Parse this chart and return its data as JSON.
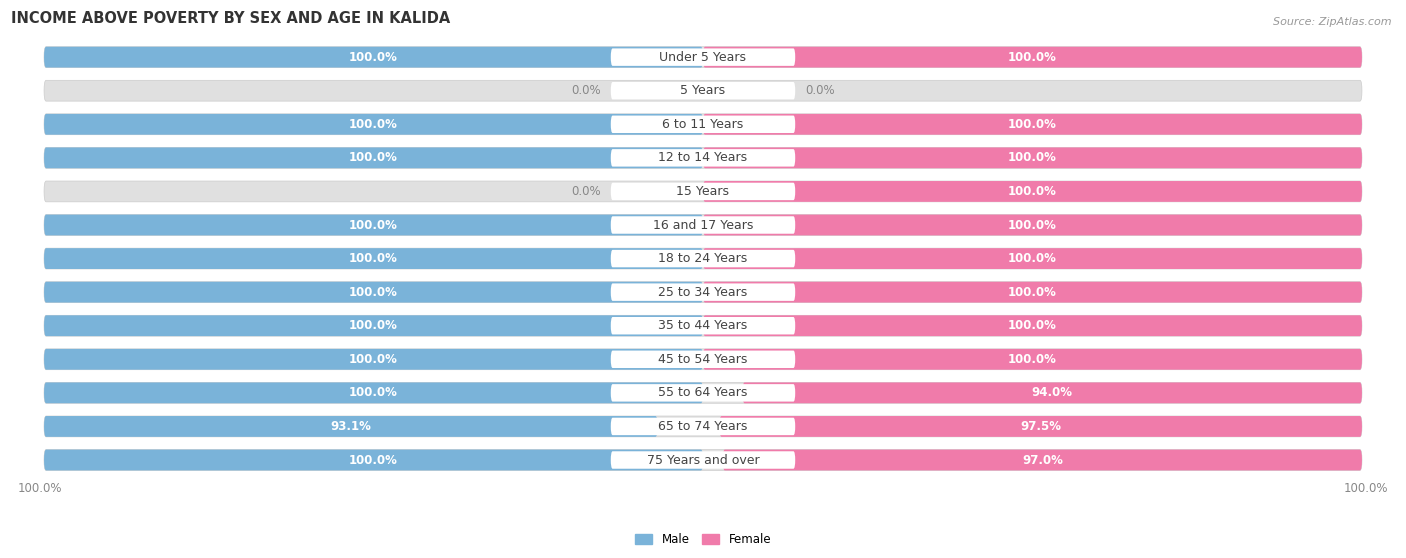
{
  "title": "INCOME ABOVE POVERTY BY SEX AND AGE IN KALIDA",
  "source": "Source: ZipAtlas.com",
  "categories": [
    "Under 5 Years",
    "5 Years",
    "6 to 11 Years",
    "12 to 14 Years",
    "15 Years",
    "16 and 17 Years",
    "18 to 24 Years",
    "25 to 34 Years",
    "35 to 44 Years",
    "45 to 54 Years",
    "55 to 64 Years",
    "65 to 74 Years",
    "75 Years and over"
  ],
  "male_values": [
    100.0,
    0.0,
    100.0,
    100.0,
    0.0,
    100.0,
    100.0,
    100.0,
    100.0,
    100.0,
    100.0,
    93.1,
    100.0
  ],
  "female_values": [
    100.0,
    0.0,
    100.0,
    100.0,
    100.0,
    100.0,
    100.0,
    100.0,
    100.0,
    100.0,
    94.0,
    97.5,
    97.0
  ],
  "male_color": "#7ab3d9",
  "female_color": "#f07baa",
  "male_label": "Male",
  "female_label": "Female",
  "bg_color": "#ffffff",
  "bar_bg_color": "#e0e0e0",
  "max_value": 100.0,
  "bar_height": 0.62,
  "title_fontsize": 10.5,
  "label_fontsize": 9,
  "value_fontsize": 8.5,
  "tick_fontsize": 8.5,
  "source_fontsize": 8
}
